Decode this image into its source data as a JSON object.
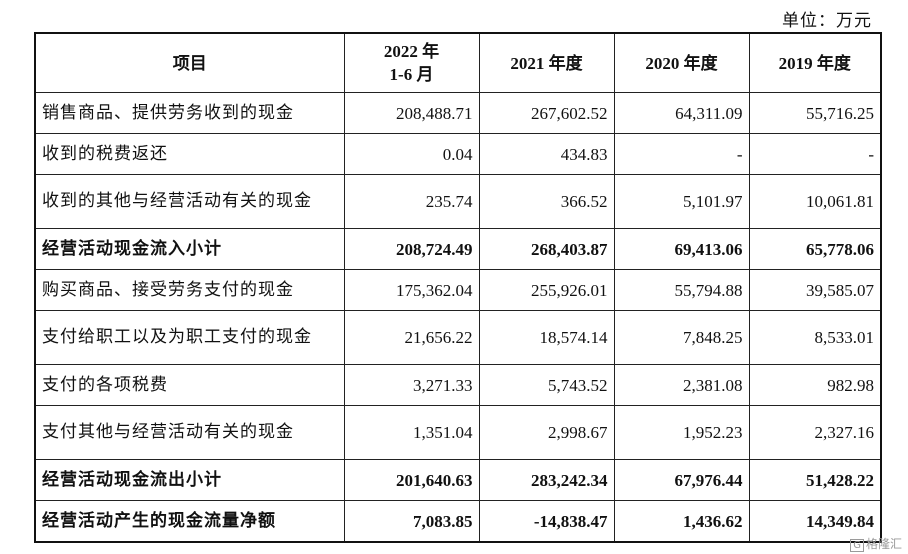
{
  "unit": "单位：万元",
  "header": {
    "item": "项目",
    "col1_l1": "2022 年",
    "col1_l2": "1-6 月",
    "col2": "2021 年度",
    "col3": "2020 年度",
    "col4": "2019 年度"
  },
  "rows": [
    {
      "label": "销售商品、提供劳务收到的现金",
      "v": [
        "208,488.71",
        "267,602.52",
        "64,311.09",
        "55,716.25"
      ]
    },
    {
      "label": "收到的税费返还",
      "v": [
        "0.04",
        "434.83",
        "-",
        "-"
      ]
    },
    {
      "label": "收到的其他与经营活动有关的现金",
      "v": [
        "235.74",
        "366.52",
        "5,101.97",
        "10,061.81"
      ]
    },
    {
      "label": "经营活动现金流入小计",
      "v": [
        "208,724.49",
        "268,403.87",
        "69,413.06",
        "65,778.06"
      ]
    },
    {
      "label": "购买商品、接受劳务支付的现金",
      "v": [
        "175,362.04",
        "255,926.01",
        "55,794.88",
        "39,585.07"
      ]
    },
    {
      "label": "支付给职工以及为职工支付的现金",
      "v": [
        "21,656.22",
        "18,574.14",
        "7,848.25",
        "8,533.01"
      ]
    },
    {
      "label": "支付的各项税费",
      "v": [
        "3,271.33",
        "5,743.52",
        "2,381.08",
        "982.98"
      ]
    },
    {
      "label": "支付其他与经营活动有关的现金",
      "v": [
        "1,351.04",
        "2,998.67",
        "1,952.23",
        "2,327.16"
      ]
    },
    {
      "label": "经营活动现金流出小计",
      "v": [
        "201,640.63",
        "283,242.34",
        "67,976.44",
        "51,428.22"
      ]
    },
    {
      "label": "经营活动产生的现金流量净额",
      "v": [
        "7,083.85",
        "-14,838.47",
        "1,436.62",
        "14,349.84"
      ]
    }
  ],
  "watermark": {
    "logo": "Gelonghui",
    "text": "格隆汇"
  }
}
